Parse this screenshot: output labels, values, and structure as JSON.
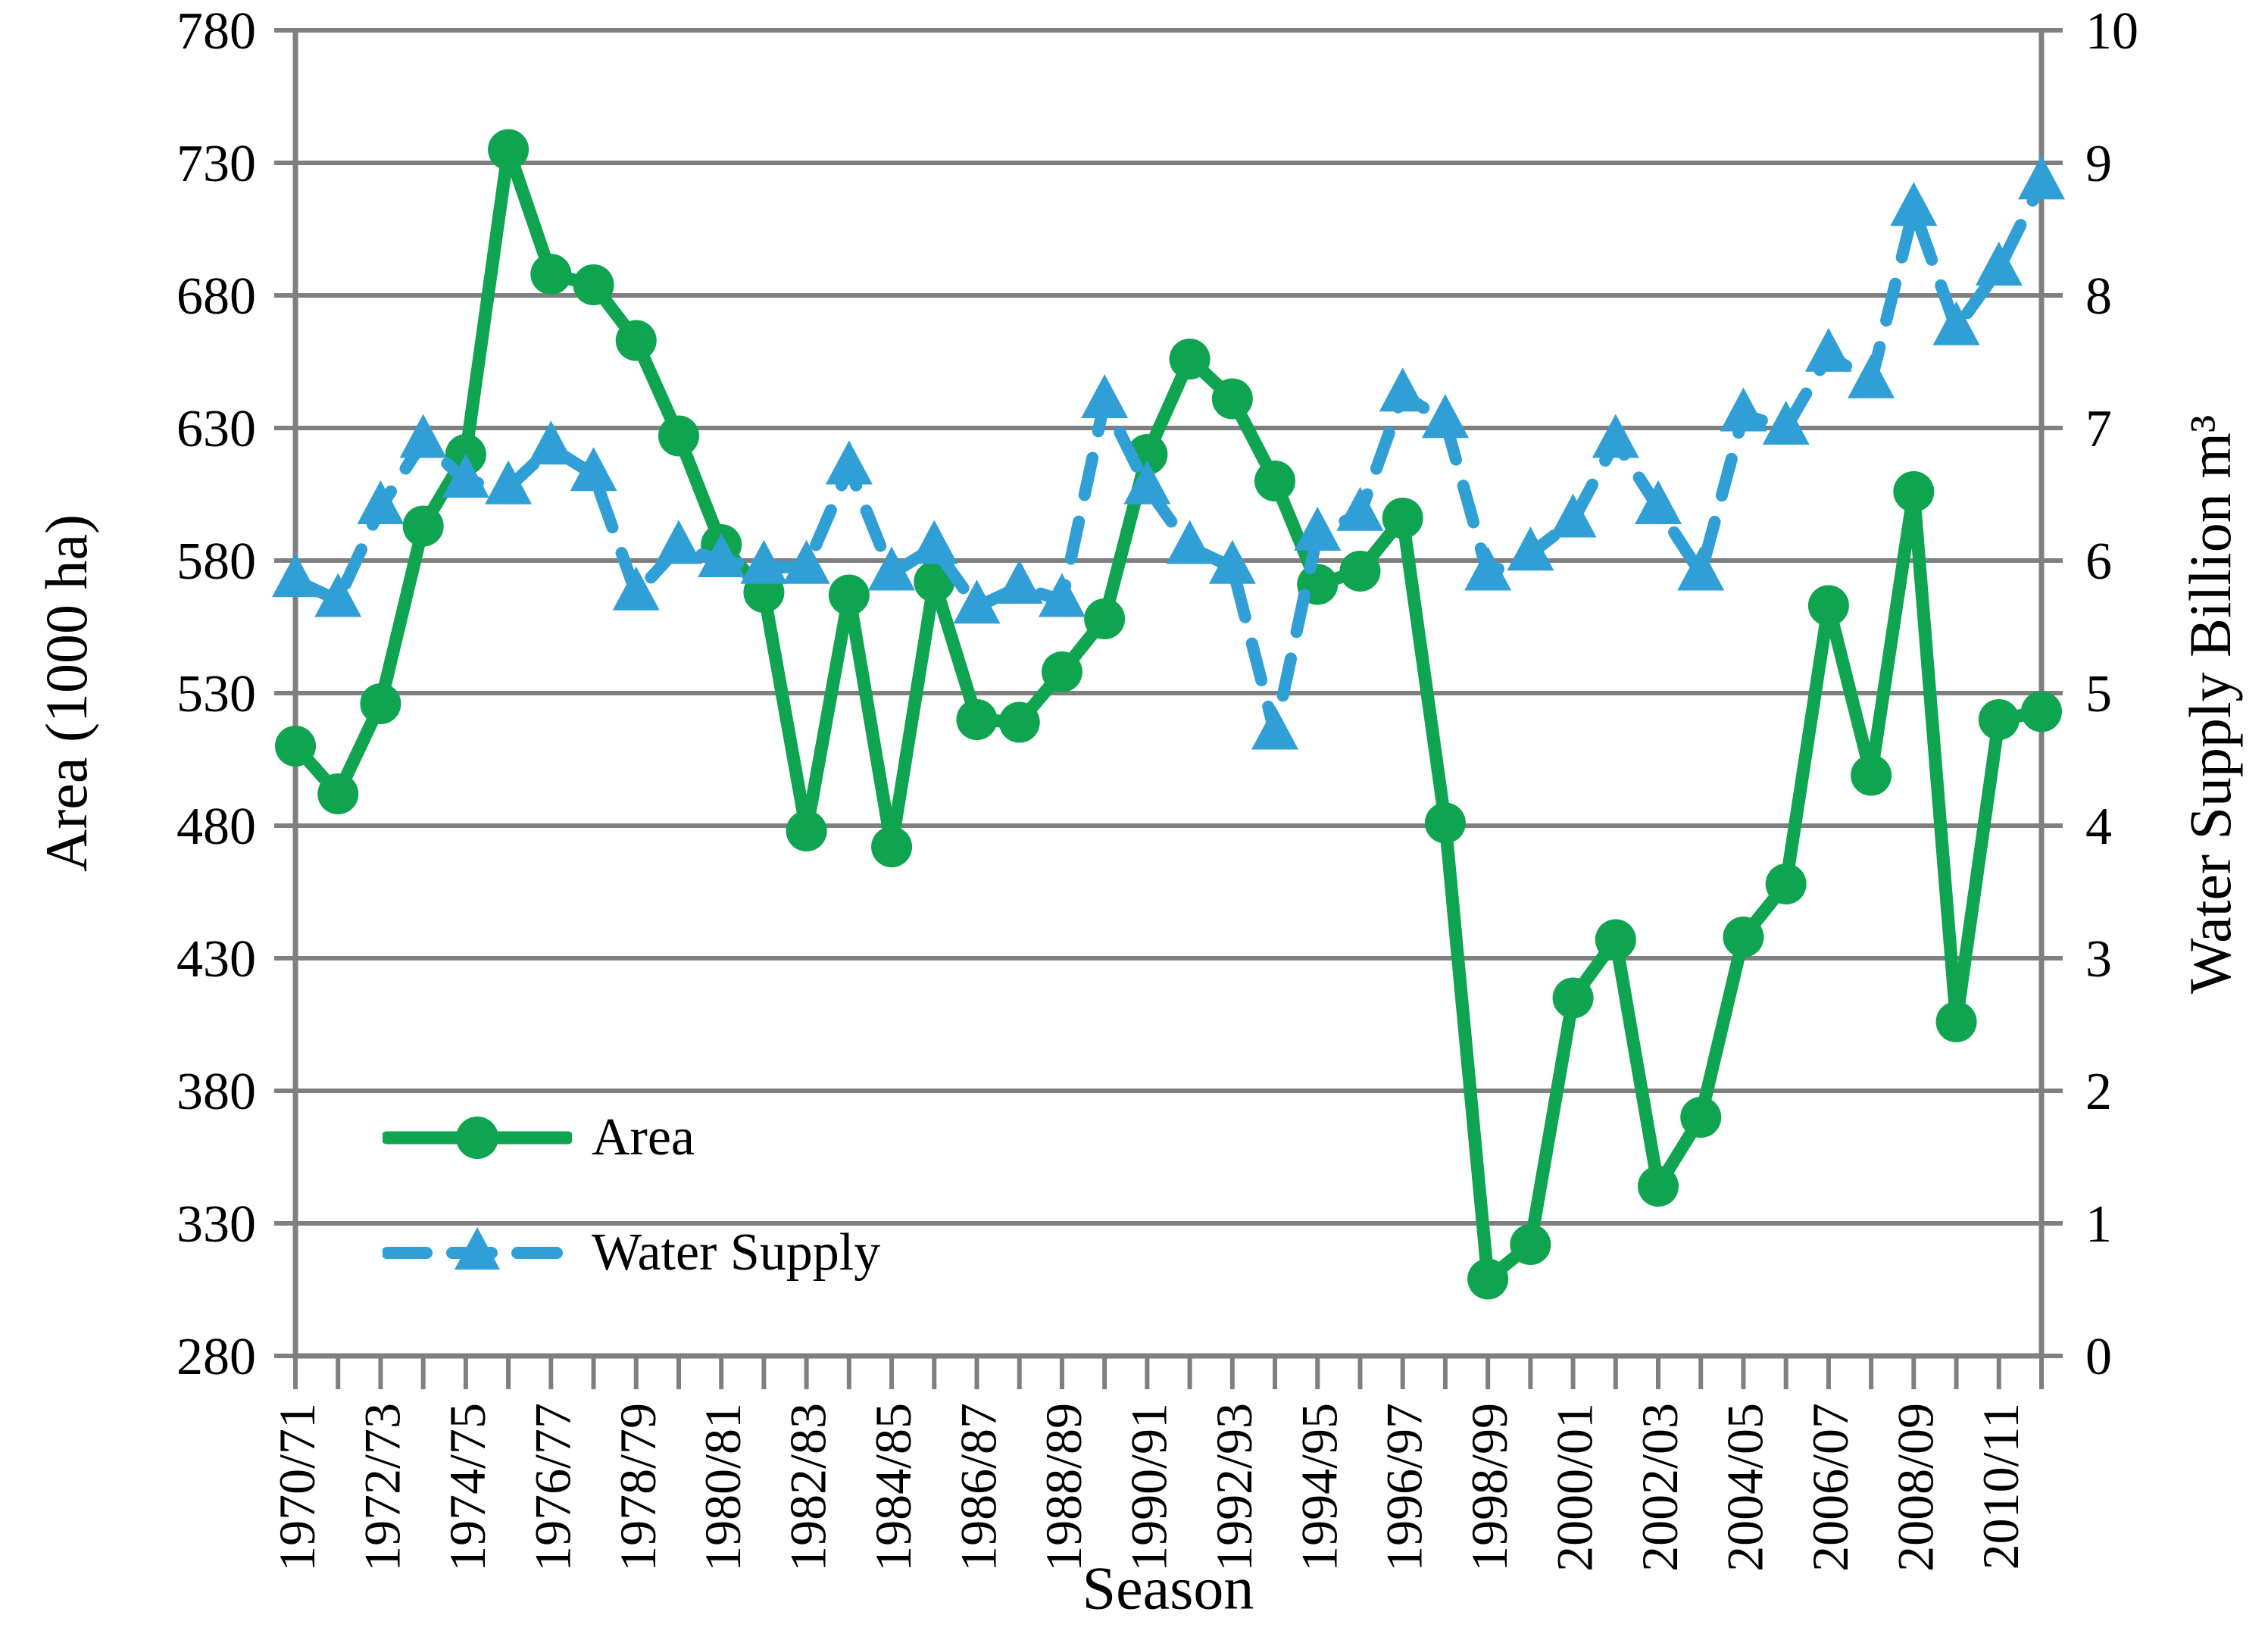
{
  "chart_data": {
    "type": "line",
    "title": "",
    "xlabel": "Season",
    "ylabel_left": "Area (1000 ha)",
    "ylabel_right": "Water Supply Billion m³",
    "y_left": {
      "min": 280,
      "max": 780,
      "step": 50
    },
    "y_right": {
      "min": 0,
      "max": 10,
      "step": 1
    },
    "y_left_ticks": [
      780,
      730,
      680,
      630,
      580,
      530,
      480,
      430,
      380,
      330,
      280
    ],
    "y_right_ticks": [
      10,
      9,
      8,
      7,
      6,
      5,
      4,
      3,
      2,
      1,
      0
    ],
    "x_tick_labels": [
      "1970/71",
      "1972/73",
      "1974/75",
      "1976/77",
      "1978/79",
      "1980/81",
      "1982/83",
      "1984/85",
      "1986/87",
      "1988/89",
      "1990/91",
      "1992/93",
      "1994/95",
      "1996/97",
      "1998/99",
      "2000/01",
      "2002/03",
      "2004/05",
      "2006/07",
      "2008/09",
      "2010/11"
    ],
    "x_tick_every": 2,
    "grid": "horizontal",
    "legend_position": "inside-lower-left",
    "grid_color": "#7F7F7F",
    "categories": [
      "1970/71",
      "1971/72",
      "1972/73",
      "1973/74",
      "1974/75",
      "1975/76",
      "1976/77",
      "1977/78",
      "1978/79",
      "1979/80",
      "1980/81",
      "1981/82",
      "1982/83",
      "1983/84",
      "1984/85",
      "1985/86",
      "1986/87",
      "1987/88",
      "1988/89",
      "1989/90",
      "1990/91",
      "1991/92",
      "1992/93",
      "1993/94",
      "1994/95",
      "1995/96",
      "1996/97",
      "1997/98",
      "1998/99",
      "1999/00",
      "2000/01",
      "2001/02",
      "2002/03",
      "2003/04",
      "2004/05",
      "2005/06",
      "2006/07",
      "2007/08",
      "2008/09",
      "2009/10",
      "2010/11",
      "2011/12"
    ],
    "series": [
      {
        "name": "Area",
        "axis": "left",
        "color": "#0FA44F",
        "marker": "circle",
        "line": "solid",
        "values": [
          510,
          492,
          526,
          593,
          620,
          735,
          688,
          684,
          663,
          627,
          586,
          568,
          478,
          567,
          472,
          572,
          520,
          519,
          538,
          558,
          620,
          656,
          641,
          610,
          571,
          576,
          596,
          481,
          309,
          322,
          415,
          437,
          344,
          370,
          438,
          458,
          563,
          499,
          606,
          406,
          520,
          523
        ]
      },
      {
        "name": "Water Supply",
        "axis": "right",
        "color": "#2F9FD6",
        "marker": "triangle",
        "line": "dashed",
        "values": [
          5.85,
          5.7,
          6.4,
          6.9,
          6.6,
          6.55,
          6.85,
          6.65,
          5.75,
          6.1,
          6.0,
          5.95,
          5.95,
          6.7,
          5.9,
          6.1,
          5.65,
          5.8,
          5.7,
          7.2,
          6.55,
          6.1,
          5.95,
          4.7,
          6.2,
          6.35,
          7.25,
          7.05,
          5.9,
          6.05,
          6.3,
          6.9,
          6.4,
          5.9,
          7.1,
          7.0,
          7.55,
          7.35,
          8.65,
          7.75,
          8.2,
          8.85
        ]
      }
    ]
  }
}
